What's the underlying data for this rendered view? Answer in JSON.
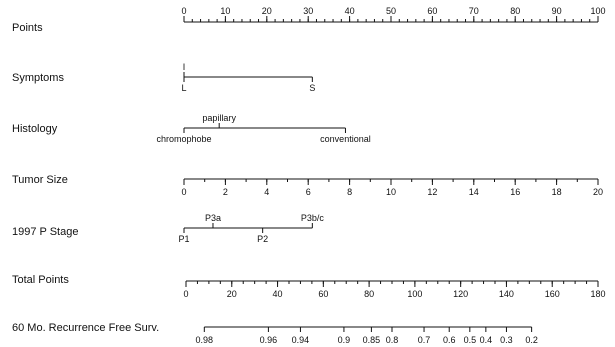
{
  "chart_data": {
    "type": "nomogram",
    "scales": [
      {
        "id": "points",
        "label": "Points",
        "kind": "numeric",
        "range": [
          0,
          100
        ],
        "ticks": [
          0,
          10,
          20,
          30,
          40,
          50,
          60,
          70,
          80,
          90,
          100
        ],
        "minor_step": 2,
        "labels_position": "above"
      },
      {
        "id": "symptoms",
        "label": "Symptoms",
        "kind": "categorical",
        "categories": [
          {
            "name": "I",
            "points": 0,
            "position": "above"
          },
          {
            "name": "L",
            "points": 0,
            "position": "below"
          },
          {
            "name": "S",
            "points": 31,
            "position": "below"
          }
        ]
      },
      {
        "id": "histology",
        "label": "Histology",
        "kind": "categorical",
        "categories": [
          {
            "name": "chromophobe",
            "points": 0,
            "position": "below"
          },
          {
            "name": "papillary",
            "points": 8.5,
            "position": "above"
          },
          {
            "name": "conventional",
            "points": 39,
            "position": "below"
          }
        ]
      },
      {
        "id": "tumor_size",
        "label": "Tumor Size",
        "kind": "numeric",
        "range": [
          0,
          20
        ],
        "points_range": [
          0,
          100
        ],
        "ticks": [
          0,
          2,
          4,
          6,
          8,
          10,
          12,
          14,
          16,
          18,
          20
        ],
        "minor_step": 1,
        "labels_position": "below"
      },
      {
        "id": "p_stage",
        "label": "1997 P Stage",
        "kind": "categorical",
        "categories": [
          {
            "name": "P1",
            "points": 0,
            "position": "below"
          },
          {
            "name": "P3a",
            "points": 7,
            "position": "above"
          },
          {
            "name": "P2",
            "points": 19,
            "position": "below"
          },
          {
            "name": "P3b/c",
            "points": 31,
            "position": "above"
          }
        ]
      },
      {
        "id": "total_points",
        "label": "Total Points",
        "kind": "numeric",
        "range": [
          0,
          180
        ],
        "ticks": [
          0,
          20,
          40,
          60,
          80,
          100,
          120,
          140,
          160,
          180
        ],
        "minor_step": 5,
        "labels_position": "below"
      },
      {
        "id": "recurrence_free",
        "label": "60 Mo. Recurrence Free Surv.",
        "kind": "probability",
        "ticks": [
          {
            "label": "0.98",
            "total_points": 8
          },
          {
            "label": "0.96",
            "total_points": 36
          },
          {
            "label": "0.94",
            "total_points": 50
          },
          {
            "label": "0.9",
            "total_points": 69
          },
          {
            "label": "0.85",
            "total_points": 81
          },
          {
            "label": "0.8",
            "total_points": 90
          },
          {
            "label": "0.7",
            "total_points": 104
          },
          {
            "label": "0.6",
            "total_points": 115
          },
          {
            "label": "0.5",
            "total_points": 124
          },
          {
            "label": "0.4",
            "total_points": 131
          },
          {
            "label": "0.3",
            "total_points": 140
          },
          {
            "label": "0.2",
            "total_points": 151
          }
        ],
        "labels_position": "below"
      }
    ]
  }
}
